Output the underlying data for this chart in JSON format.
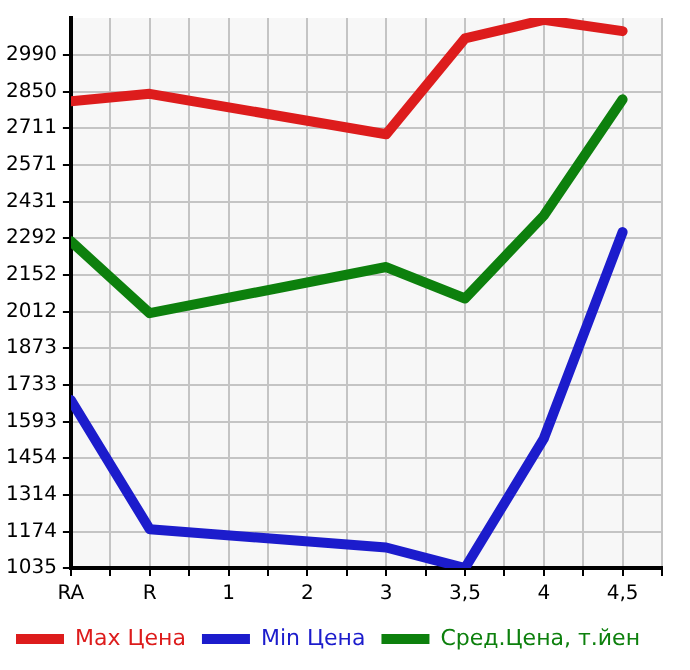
{
  "chart_data": {
    "type": "line",
    "categories": [
      "RA",
      "R",
      "1",
      "2",
      "3",
      "3,5",
      "4",
      "4,5"
    ],
    "series": [
      {
        "name": "Max Цена",
        "color": "#dd1c1c",
        "values": [
          2814,
          2842,
          null,
          null,
          2688,
          3053,
          3124,
          3081
        ]
      },
      {
        "name": "Min Цена",
        "color": "#1c1ccc",
        "values": [
          1675,
          1183,
          null,
          null,
          1113,
          1035,
          1528,
          2315
        ]
      },
      {
        "name": "Сред.Цена, т.йен",
        "color": "#0d800d",
        "values": [
          2280,
          2006,
          null,
          null,
          2182,
          2062,
          2378,
          2821
        ]
      }
    ],
    "ylim": [
      1035,
      3131
    ],
    "yticks": [
      1035,
      1174,
      1314,
      1454,
      1593,
      1733,
      1873,
      2012,
      2152,
      2292,
      2431,
      2571,
      2711,
      2850,
      2990
    ],
    "grid": true,
    "legend": "bottom",
    "marker": "none",
    "line_style": "solid"
  }
}
